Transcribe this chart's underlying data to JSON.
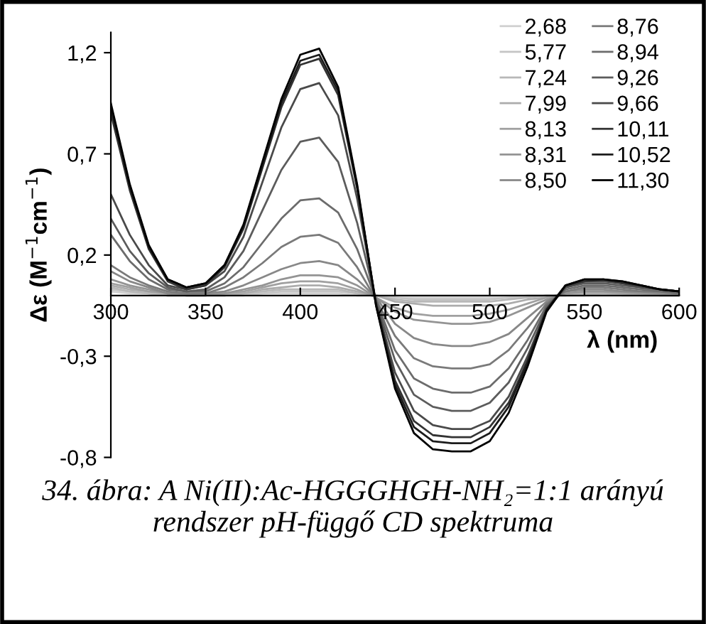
{
  "chart_data": {
    "type": "line",
    "xlabel": "λ (nm)",
    "ylabel": "Δε (M$^{−1}$cm$^{−1}$)",
    "x": [
      300,
      310,
      320,
      330,
      340,
      350,
      360,
      370,
      380,
      390,
      400,
      410,
      420,
      430,
      440,
      450,
      460,
      470,
      480,
      490,
      500,
      510,
      520,
      530,
      540,
      550,
      560,
      570,
      580,
      590,
      600
    ],
    "xlim": [
      300,
      600
    ],
    "xticks": [
      300,
      350,
      400,
      450,
      500,
      550,
      600
    ],
    "ylim": [
      -0.8,
      1.3
    ],
    "yticks": [
      {
        "value": -0.8,
        "label": "-0,8"
      },
      {
        "value": -0.3,
        "label": "-0,3"
      },
      {
        "value": 0.2,
        "label": "0,2"
      },
      {
        "value": 0.7,
        "label": "0,7"
      },
      {
        "value": 1.2,
        "label": "1,2"
      }
    ],
    "legend": "top right",
    "grid": false,
    "annotations": [
      "34. ábra: A Ni(II):Ac-HGGGHGH-NH₂=1:1 arányú rendszer pH-függő CD spektruma"
    ],
    "series": [
      {
        "name": "2,68",
        "color": "#d0d0d0",
        "values": [
          0.02,
          0.01,
          0.01,
          0.0,
          0.0,
          0.0,
          0.0,
          0.0,
          0.01,
          0.01,
          0.01,
          0.01,
          0.01,
          0.0,
          0.0,
          -0.01,
          -0.01,
          -0.01,
          -0.01,
          -0.01,
          -0.01,
          -0.01,
          0.0,
          0.0,
          0.0,
          0.0,
          0.0,
          0.0,
          0.0,
          0.0,
          0.0
        ]
      },
      {
        "name": "5,77",
        "color": "#c4c4c4",
        "values": [
          0.03,
          0.02,
          0.01,
          0.0,
          0.0,
          0.0,
          0.0,
          0.01,
          0.01,
          0.02,
          0.02,
          0.02,
          0.02,
          0.01,
          0.0,
          -0.01,
          -0.02,
          -0.02,
          -0.02,
          -0.02,
          -0.02,
          -0.01,
          -0.01,
          0.0,
          0.0,
          0.0,
          0.01,
          0.0,
          0.0,
          0.0,
          0.0
        ]
      },
      {
        "name": "7,24",
        "color": "#b8b8b8",
        "values": [
          0.04,
          0.02,
          0.01,
          0.0,
          0.0,
          0.0,
          0.0,
          0.01,
          0.02,
          0.03,
          0.03,
          0.03,
          0.03,
          0.01,
          0.0,
          -0.02,
          -0.03,
          -0.03,
          -0.03,
          -0.03,
          -0.03,
          -0.02,
          -0.01,
          0.0,
          0.0,
          0.01,
          0.01,
          0.01,
          0.0,
          0.0,
          0.0
        ]
      },
      {
        "name": "7,99",
        "color": "#acacac",
        "values": [
          0.05,
          0.03,
          0.02,
          0.01,
          0.0,
          0.0,
          0.01,
          0.01,
          0.03,
          0.04,
          0.05,
          0.05,
          0.04,
          0.02,
          0.0,
          -0.03,
          -0.04,
          -0.05,
          -0.05,
          -0.05,
          -0.05,
          -0.04,
          -0.02,
          -0.01,
          0.01,
          0.01,
          0.01,
          0.01,
          0.01,
          0.0,
          0.0
        ]
      },
      {
        "name": "8,13",
        "color": "#a0a0a0",
        "values": [
          0.06,
          0.04,
          0.02,
          0.01,
          0.0,
          0.0,
          0.01,
          0.02,
          0.04,
          0.06,
          0.07,
          0.07,
          0.06,
          0.03,
          -0.01,
          -0.06,
          -0.09,
          -0.1,
          -0.1,
          -0.1,
          -0.09,
          -0.07,
          -0.04,
          -0.01,
          0.01,
          0.02,
          0.02,
          0.01,
          0.01,
          0.01,
          0.0
        ]
      },
      {
        "name": "8,31",
        "color": "#949494",
        "values": [
          0.08,
          0.05,
          0.03,
          0.01,
          0.01,
          0.01,
          0.01,
          0.03,
          0.05,
          0.08,
          0.1,
          0.1,
          0.09,
          0.05,
          -0.01,
          -0.08,
          -0.12,
          -0.13,
          -0.14,
          -0.14,
          -0.13,
          -0.1,
          -0.06,
          -0.02,
          0.01,
          0.02,
          0.02,
          0.02,
          0.01,
          0.01,
          0.01
        ]
      },
      {
        "name": "8,50",
        "color": "#888888",
        "values": [
          0.12,
          0.07,
          0.04,
          0.01,
          0.01,
          0.01,
          0.02,
          0.05,
          0.09,
          0.13,
          0.16,
          0.17,
          0.15,
          0.08,
          -0.01,
          -0.14,
          -0.21,
          -0.24,
          -0.25,
          -0.25,
          -0.23,
          -0.19,
          -0.11,
          -0.03,
          0.02,
          0.03,
          0.03,
          0.02,
          0.02,
          0.01,
          0.01
        ]
      },
      {
        "name": "8,76",
        "color": "#7a7a7a",
        "values": [
          0.15,
          0.09,
          0.05,
          0.02,
          0.01,
          0.01,
          0.04,
          0.09,
          0.16,
          0.24,
          0.29,
          0.3,
          0.26,
          0.14,
          -0.02,
          -0.2,
          -0.31,
          -0.35,
          -0.36,
          -0.36,
          -0.34,
          -0.27,
          -0.16,
          -0.04,
          0.02,
          0.04,
          0.04,
          0.03,
          0.02,
          0.02,
          0.01
        ]
      },
      {
        "name": "8,94",
        "color": "#6c6c6c",
        "values": [
          0.3,
          0.17,
          0.08,
          0.03,
          0.02,
          0.02,
          0.06,
          0.14,
          0.26,
          0.38,
          0.47,
          0.48,
          0.41,
          0.23,
          -0.02,
          -0.27,
          -0.41,
          -0.46,
          -0.48,
          -0.48,
          -0.45,
          -0.36,
          -0.22,
          -0.05,
          0.03,
          0.05,
          0.05,
          0.04,
          0.03,
          0.02,
          0.01
        ]
      },
      {
        "name": "9,26",
        "color": "#5c5c5c",
        "values": [
          0.38,
          0.22,
          0.11,
          0.04,
          0.02,
          0.03,
          0.09,
          0.22,
          0.42,
          0.62,
          0.76,
          0.78,
          0.66,
          0.36,
          -0.03,
          -0.32,
          -0.49,
          -0.55,
          -0.57,
          -0.57,
          -0.53,
          -0.43,
          -0.26,
          -0.06,
          0.04,
          0.06,
          0.06,
          0.05,
          0.04,
          0.03,
          0.02
        ]
      },
      {
        "name": "9,66",
        "color": "#4a4a4a",
        "values": [
          0.5,
          0.3,
          0.15,
          0.05,
          0.03,
          0.05,
          0.12,
          0.29,
          0.56,
          0.83,
          1.02,
          1.05,
          0.89,
          0.48,
          -0.04,
          -0.38,
          -0.57,
          -0.64,
          -0.66,
          -0.66,
          -0.62,
          -0.5,
          -0.3,
          -0.07,
          0.04,
          0.07,
          0.07,
          0.06,
          0.04,
          0.03,
          0.02
        ]
      },
      {
        "name": "10,11",
        "color": "#333333",
        "values": [
          0.9,
          0.52,
          0.23,
          0.07,
          0.03,
          0.05,
          0.14,
          0.33,
          0.63,
          0.93,
          1.14,
          1.17,
          0.99,
          0.53,
          -0.04,
          -0.42,
          -0.62,
          -0.69,
          -0.7,
          -0.7,
          -0.65,
          -0.53,
          -0.32,
          -0.07,
          0.05,
          0.07,
          0.08,
          0.06,
          0.05,
          0.03,
          0.02
        ]
      },
      {
        "name": "10,52",
        "color": "#1c1c1c",
        "values": [
          0.93,
          0.54,
          0.24,
          0.08,
          0.04,
          0.06,
          0.15,
          0.34,
          0.64,
          0.95,
          1.16,
          1.19,
          1.01,
          0.54,
          -0.05,
          -0.44,
          -0.65,
          -0.72,
          -0.73,
          -0.73,
          -0.68,
          -0.55,
          -0.33,
          -0.07,
          0.05,
          0.08,
          0.08,
          0.07,
          0.05,
          0.03,
          0.02
        ]
      },
      {
        "name": "11,30",
        "color": "#000000",
        "values": [
          0.95,
          0.55,
          0.25,
          0.08,
          0.04,
          0.06,
          0.15,
          0.35,
          0.66,
          0.97,
          1.19,
          1.22,
          1.03,
          0.55,
          -0.05,
          -0.46,
          -0.68,
          -0.76,
          -0.77,
          -0.77,
          -0.72,
          -0.58,
          -0.35,
          -0.08,
          0.05,
          0.08,
          0.08,
          0.07,
          0.05,
          0.03,
          0.02
        ]
      }
    ]
  }
}
